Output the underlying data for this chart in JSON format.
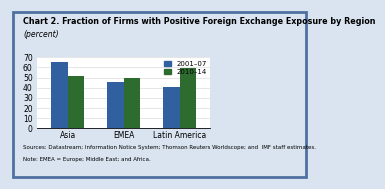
{
  "title": "Chart 2. Fraction of Firms with Positive Foreign Exchange Exposure by Region",
  "subtitle": "(percent)",
  "categories": [
    "Asia",
    "EMEA",
    "Latin America"
  ],
  "series": [
    {
      "label": "2001–07",
      "values": [
        65,
        46,
        41
      ],
      "color": "#3060A0"
    },
    {
      "label": "2010–14",
      "values": [
        52,
        50,
        59
      ],
      "color": "#2E6B2E"
    }
  ],
  "ylim": [
    0,
    70
  ],
  "yticks": [
    0,
    10,
    20,
    30,
    40,
    50,
    60,
    70
  ],
  "footnote1": "Sources: Datastream; Information Notice System; Thomson Reuters Worldscope; and  IMF staff estimates.",
  "footnote2": "Note: EMEA = Europe; Middle East; and Africa.",
  "background_color": "#d9e4f0",
  "plot_bg_color": "#ffffff",
  "border_color": "#5070a0",
  "bar_width": 0.3
}
